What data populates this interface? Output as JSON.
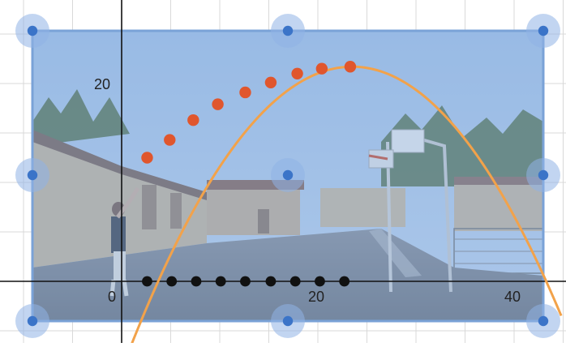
{
  "graph": {
    "x_tick_labels": [
      "0",
      "20",
      "40"
    ],
    "y_tick_labels": [
      "20"
    ],
    "photo_scene": "basketball-shot-photo",
    "colors": {
      "grid": "#d9d9d9",
      "axis": "#111111",
      "selection_fill": "#7fa8dd",
      "handle": "#3b74c8",
      "handle_halo": "#8fb3e6",
      "parabola": "#f2a24a",
      "ball_marker": "#e0562d",
      "ground_marker": "#111111"
    }
  },
  "chart_data": {
    "type": "scatter",
    "axes": {
      "x_tick_labels": [
        0,
        20,
        40
      ],
      "y_tick_labels": [
        20
      ],
      "xlim": [
        -20,
        45
      ],
      "ylim": [
        -8,
        32
      ]
    },
    "ball_points": [
      {
        "x": 2.6,
        "y": 12.5
      },
      {
        "x": 4.9,
        "y": 14.3
      },
      {
        "x": 7.3,
        "y": 16.3
      },
      {
        "x": 9.8,
        "y": 17.9
      },
      {
        "x": 12.6,
        "y": 19.1
      },
      {
        "x": 15.2,
        "y": 20.1
      },
      {
        "x": 17.9,
        "y": 21.0
      },
      {
        "x": 20.4,
        "y": 21.5
      },
      {
        "x": 23.3,
        "y": 21.7
      }
    ],
    "ground_points": [
      2.6,
      5.1,
      7.6,
      10.1,
      12.6,
      15.2,
      17.7,
      20.2,
      22.7
    ],
    "fitted_parabola": {
      "vertex_x": 23.5,
      "vertex_y": 21.7,
      "a": -0.0555
    },
    "selection_handles": [
      "top-left",
      "top-middle",
      "top-right",
      "middle-left",
      "center",
      "middle-right",
      "bottom-left",
      "bottom-middle",
      "bottom-right"
    ]
  }
}
